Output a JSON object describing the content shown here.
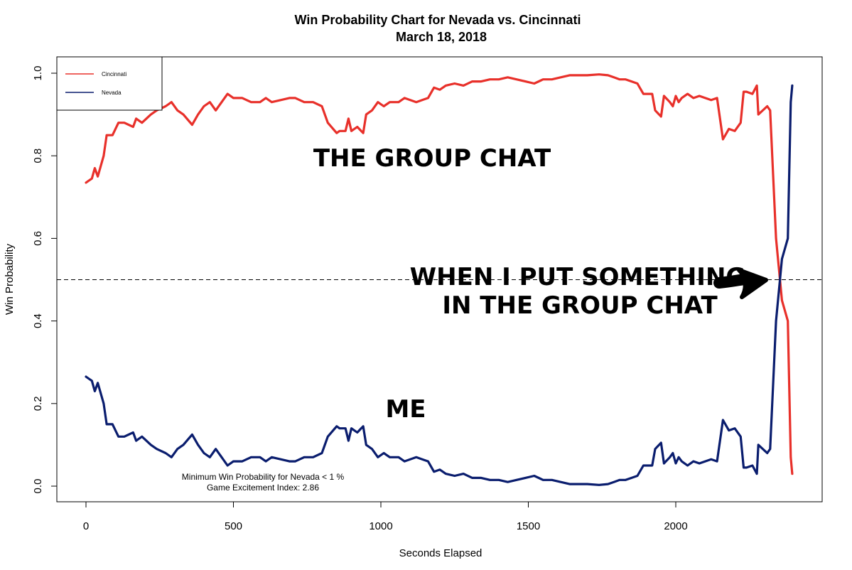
{
  "chart_data": {
    "type": "line",
    "title": "Win Probability Chart for Nevada vs. Cincinnati",
    "subtitle": "March 18, 2018",
    "xlabel": "Seconds Elapsed",
    "ylabel": "Win Probability",
    "xlim": [
      0,
      2400
    ],
    "ylim": [
      0,
      1
    ],
    "x_ticks": [
      0,
      500,
      1000,
      1500,
      2000
    ],
    "y_ticks": [
      "0.0",
      "0.2",
      "0.4",
      "0.6",
      "0.8",
      "1.0"
    ],
    "reference_line": 0.5,
    "legend_position": "top-left",
    "series": [
      {
        "name": "Cincinnati",
        "color": "#e8302a",
        "points": [
          [
            0,
            0.735
          ],
          [
            20,
            0.745
          ],
          [
            30,
            0.77
          ],
          [
            40,
            0.75
          ],
          [
            60,
            0.8
          ],
          [
            70,
            0.85
          ],
          [
            90,
            0.85
          ],
          [
            110,
            0.88
          ],
          [
            130,
            0.88
          ],
          [
            160,
            0.87
          ],
          [
            170,
            0.89
          ],
          [
            190,
            0.88
          ],
          [
            220,
            0.9
          ],
          [
            240,
            0.91
          ],
          [
            270,
            0.92
          ],
          [
            290,
            0.93
          ],
          [
            310,
            0.91
          ],
          [
            330,
            0.9
          ],
          [
            360,
            0.875
          ],
          [
            380,
            0.9
          ],
          [
            400,
            0.92
          ],
          [
            420,
            0.93
          ],
          [
            440,
            0.91
          ],
          [
            460,
            0.93
          ],
          [
            480,
            0.95
          ],
          [
            500,
            0.94
          ],
          [
            530,
            0.94
          ],
          [
            560,
            0.93
          ],
          [
            590,
            0.93
          ],
          [
            610,
            0.94
          ],
          [
            630,
            0.93
          ],
          [
            660,
            0.935
          ],
          [
            690,
            0.94
          ],
          [
            710,
            0.94
          ],
          [
            740,
            0.93
          ],
          [
            770,
            0.93
          ],
          [
            800,
            0.92
          ],
          [
            820,
            0.88
          ],
          [
            850,
            0.855
          ],
          [
            860,
            0.86
          ],
          [
            880,
            0.86
          ],
          [
            890,
            0.89
          ],
          [
            900,
            0.86
          ],
          [
            920,
            0.87
          ],
          [
            940,
            0.855
          ],
          [
            950,
            0.9
          ],
          [
            970,
            0.91
          ],
          [
            990,
            0.93
          ],
          [
            1010,
            0.92
          ],
          [
            1030,
            0.93
          ],
          [
            1060,
            0.93
          ],
          [
            1080,
            0.94
          ],
          [
            1120,
            0.93
          ],
          [
            1140,
            0.935
          ],
          [
            1160,
            0.94
          ],
          [
            1180,
            0.965
          ],
          [
            1200,
            0.96
          ],
          [
            1220,
            0.97
          ],
          [
            1250,
            0.975
          ],
          [
            1280,
            0.97
          ],
          [
            1310,
            0.98
          ],
          [
            1340,
            0.98
          ],
          [
            1370,
            0.985
          ],
          [
            1400,
            0.985
          ],
          [
            1430,
            0.99
          ],
          [
            1460,
            0.985
          ],
          [
            1490,
            0.98
          ],
          [
            1520,
            0.975
          ],
          [
            1550,
            0.985
          ],
          [
            1580,
            0.985
          ],
          [
            1610,
            0.99
          ],
          [
            1640,
            0.995
          ],
          [
            1670,
            0.995
          ],
          [
            1700,
            0.995
          ],
          [
            1740,
            0.997
          ],
          [
            1770,
            0.995
          ],
          [
            1790,
            0.99
          ],
          [
            1810,
            0.985
          ],
          [
            1830,
            0.985
          ],
          [
            1850,
            0.98
          ],
          [
            1870,
            0.975
          ],
          [
            1890,
            0.95
          ],
          [
            1900,
            0.95
          ],
          [
            1920,
            0.95
          ],
          [
            1930,
            0.91
          ],
          [
            1950,
            0.895
          ],
          [
            1960,
            0.945
          ],
          [
            1980,
            0.93
          ],
          [
            1990,
            0.92
          ],
          [
            2000,
            0.945
          ],
          [
            2010,
            0.93
          ],
          [
            2020,
            0.94
          ],
          [
            2040,
            0.95
          ],
          [
            2060,
            0.94
          ],
          [
            2080,
            0.945
          ],
          [
            2100,
            0.94
          ],
          [
            2120,
            0.935
          ],
          [
            2140,
            0.94
          ],
          [
            2160,
            0.84
          ],
          [
            2180,
            0.865
          ],
          [
            2200,
            0.86
          ],
          [
            2220,
            0.88
          ],
          [
            2230,
            0.955
          ],
          [
            2240,
            0.955
          ],
          [
            2260,
            0.95
          ],
          [
            2275,
            0.97
          ],
          [
            2280,
            0.9
          ],
          [
            2310,
            0.92
          ],
          [
            2320,
            0.91
          ],
          [
            2340,
            0.6
          ],
          [
            2360,
            0.45
          ],
          [
            2380,
            0.4
          ],
          [
            2390,
            0.07
          ],
          [
            2395,
            0.03
          ]
        ]
      },
      {
        "name": "Nevada",
        "color": "#0a1d6e",
        "points": [
          [
            0,
            0.265
          ],
          [
            20,
            0.255
          ],
          [
            30,
            0.23
          ],
          [
            40,
            0.25
          ],
          [
            60,
            0.2
          ],
          [
            70,
            0.15
          ],
          [
            90,
            0.15
          ],
          [
            110,
            0.12
          ],
          [
            130,
            0.12
          ],
          [
            160,
            0.13
          ],
          [
            170,
            0.11
          ],
          [
            190,
            0.12
          ],
          [
            220,
            0.1
          ],
          [
            240,
            0.09
          ],
          [
            270,
            0.08
          ],
          [
            290,
            0.07
          ],
          [
            310,
            0.09
          ],
          [
            330,
            0.1
          ],
          [
            360,
            0.125
          ],
          [
            380,
            0.1
          ],
          [
            400,
            0.08
          ],
          [
            420,
            0.07
          ],
          [
            440,
            0.09
          ],
          [
            460,
            0.07
          ],
          [
            480,
            0.05
          ],
          [
            500,
            0.06
          ],
          [
            530,
            0.06
          ],
          [
            560,
            0.07
          ],
          [
            590,
            0.07
          ],
          [
            610,
            0.06
          ],
          [
            630,
            0.07
          ],
          [
            660,
            0.065
          ],
          [
            690,
            0.06
          ],
          [
            710,
            0.06
          ],
          [
            740,
            0.07
          ],
          [
            770,
            0.07
          ],
          [
            800,
            0.08
          ],
          [
            820,
            0.12
          ],
          [
            850,
            0.145
          ],
          [
            860,
            0.14
          ],
          [
            880,
            0.14
          ],
          [
            890,
            0.11
          ],
          [
            900,
            0.14
          ],
          [
            920,
            0.13
          ],
          [
            940,
            0.145
          ],
          [
            950,
            0.1
          ],
          [
            970,
            0.09
          ],
          [
            990,
            0.07
          ],
          [
            1010,
            0.08
          ],
          [
            1030,
            0.07
          ],
          [
            1060,
            0.07
          ],
          [
            1080,
            0.06
          ],
          [
            1120,
            0.07
          ],
          [
            1140,
            0.065
          ],
          [
            1160,
            0.06
          ],
          [
            1180,
            0.035
          ],
          [
            1200,
            0.04
          ],
          [
            1220,
            0.03
          ],
          [
            1250,
            0.025
          ],
          [
            1280,
            0.03
          ],
          [
            1310,
            0.02
          ],
          [
            1340,
            0.02
          ],
          [
            1370,
            0.015
          ],
          [
            1400,
            0.015
          ],
          [
            1430,
            0.01
          ],
          [
            1460,
            0.015
          ],
          [
            1490,
            0.02
          ],
          [
            1520,
            0.025
          ],
          [
            1550,
            0.015
          ],
          [
            1580,
            0.015
          ],
          [
            1610,
            0.01
          ],
          [
            1640,
            0.005
          ],
          [
            1670,
            0.005
          ],
          [
            1700,
            0.005
          ],
          [
            1740,
            0.003
          ],
          [
            1770,
            0.005
          ],
          [
            1790,
            0.01
          ],
          [
            1810,
            0.015
          ],
          [
            1830,
            0.015
          ],
          [
            1850,
            0.02
          ],
          [
            1870,
            0.025
          ],
          [
            1890,
            0.05
          ],
          [
            1900,
            0.05
          ],
          [
            1920,
            0.05
          ],
          [
            1930,
            0.09
          ],
          [
            1950,
            0.105
          ],
          [
            1960,
            0.055
          ],
          [
            1980,
            0.07
          ],
          [
            1990,
            0.08
          ],
          [
            2000,
            0.055
          ],
          [
            2010,
            0.07
          ],
          [
            2020,
            0.06
          ],
          [
            2040,
            0.05
          ],
          [
            2060,
            0.06
          ],
          [
            2080,
            0.055
          ],
          [
            2100,
            0.06
          ],
          [
            2120,
            0.065
          ],
          [
            2140,
            0.06
          ],
          [
            2160,
            0.16
          ],
          [
            2180,
            0.135
          ],
          [
            2200,
            0.14
          ],
          [
            2220,
            0.12
          ],
          [
            2230,
            0.045
          ],
          [
            2240,
            0.045
          ],
          [
            2260,
            0.05
          ],
          [
            2275,
            0.03
          ],
          [
            2280,
            0.1
          ],
          [
            2310,
            0.08
          ],
          [
            2320,
            0.09
          ],
          [
            2340,
            0.4
          ],
          [
            2360,
            0.55
          ],
          [
            2380,
            0.6
          ],
          [
            2390,
            0.93
          ],
          [
            2395,
            0.97
          ]
        ]
      }
    ],
    "annotations": {
      "min_win_prob": "Minimum Win Probability for Nevada < 1 %",
      "excitement_index": "Game Excitement Index: 2.86"
    }
  },
  "meme": {
    "group_chat": "THE GROUP CHAT",
    "me": "ME",
    "when_line1": "WHEN I PUT SOMETHING",
    "when_line2": "IN THE GROUP CHAT"
  }
}
